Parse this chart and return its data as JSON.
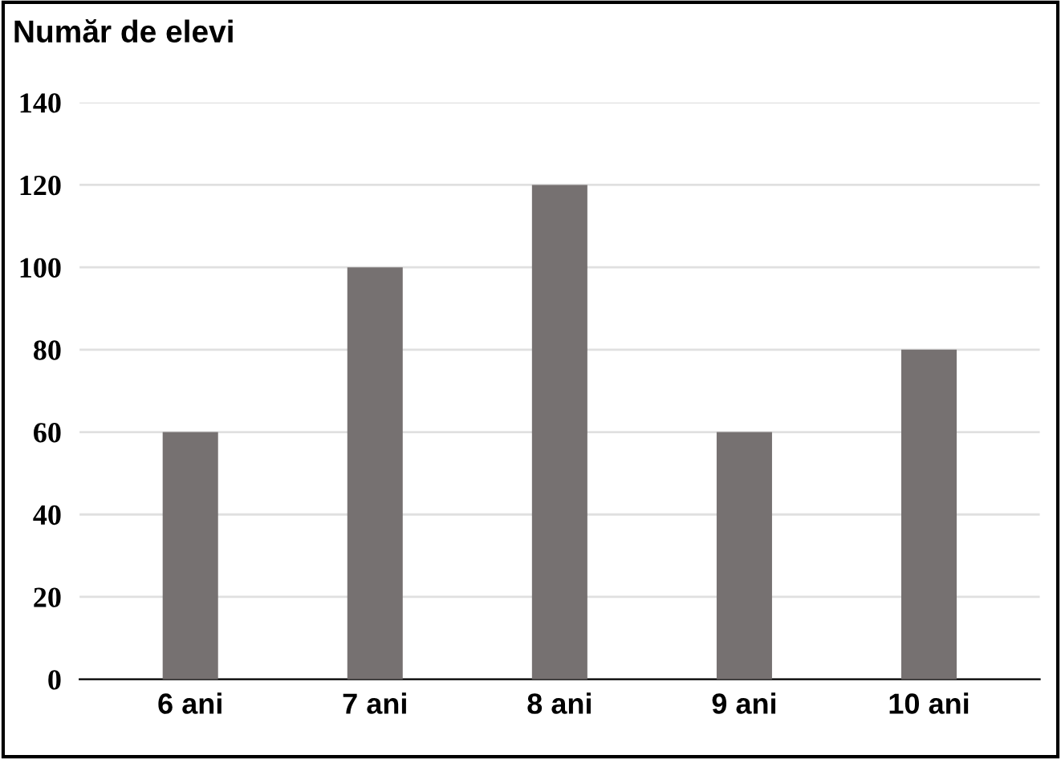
{
  "chart_data": {
    "type": "bar",
    "title": "Număr de elevi",
    "categories": [
      "6 ani",
      "7 ani",
      "8 ani",
      "9 ani",
      "10 ani"
    ],
    "values": [
      60,
      100,
      120,
      60,
      80
    ],
    "color": "#767171",
    "ylim": [
      0,
      140
    ],
    "yticks": [
      0,
      20,
      40,
      60,
      80,
      100,
      120,
      140
    ],
    "grid": "y",
    "legend": false
  }
}
